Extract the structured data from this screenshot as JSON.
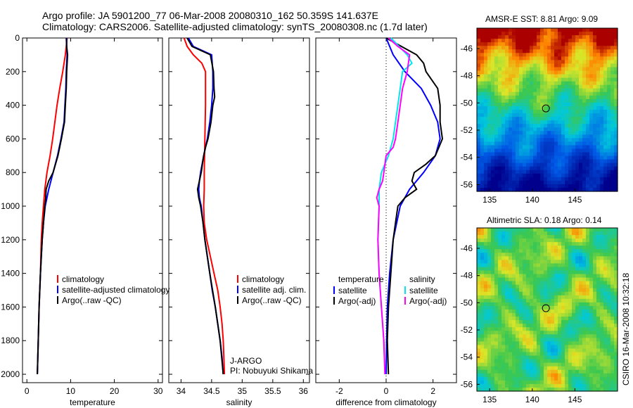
{
  "header": {
    "line1": "Argo profile: JA 5901200_77 06-Mar-2008 20080310_162 50.359S 141.637E",
    "line2": "Climatology: CARS2006. Satellite-adjusted climatology: synTS_20080308.nc (1.7d later)"
  },
  "chart_data": [
    {
      "type": "line",
      "xlabel": "temperature",
      "ylabel": "",
      "xlim": [
        -1,
        31
      ],
      "ylim": [
        2050,
        0
      ],
      "x_ticks": [
        "0",
        "10",
        "20",
        "30"
      ],
      "y_ticks": [
        "0",
        "200",
        "400",
        "600",
        "800",
        "1000",
        "1200",
        "1400",
        "1600",
        "1800",
        "2000"
      ],
      "legend": [
        "climatology",
        "satellite-adjusted climatology",
        "Argo(..raw -QC)"
      ],
      "series": [
        {
          "name": "climatology",
          "color": "#ff0000",
          "depth": [
            0,
            50,
            100,
            200,
            300,
            400,
            500,
            600,
            700,
            800,
            900,
            1000,
            1100,
            1200,
            1400,
            1600,
            1800,
            2000
          ],
          "values": [
            9.2,
            9.0,
            8.8,
            8.2,
            7.5,
            6.9,
            6.4,
            5.9,
            5.3,
            4.6,
            4.1,
            3.8,
            3.5,
            3.3,
            3.1,
            2.8,
            2.6,
            2.4
          ]
        },
        {
          "name": "satellite-adjusted climatology",
          "color": "#0000ff",
          "depth": [
            0,
            50,
            100,
            200,
            300,
            400,
            500,
            600,
            700,
            800,
            900,
            1000,
            1100,
            1200,
            1400,
            1600,
            1800,
            2000
          ],
          "values": [
            9.1,
            9.1,
            9.2,
            9.0,
            8.9,
            8.7,
            8.5,
            7.8,
            7.0,
            6.0,
            5.0,
            4.2,
            3.8,
            3.5,
            3.1,
            2.8,
            2.6,
            2.4
          ]
        },
        {
          "name": "Argo(..raw -QC)",
          "color": "#000000",
          "depth": [
            0,
            50,
            100,
            200,
            300,
            400,
            500,
            600,
            700,
            800,
            850,
            900,
            950,
            1000,
            1100,
            1200,
            1400,
            1600,
            1800,
            2000
          ],
          "values": [
            9.0,
            9.1,
            9.3,
            9.1,
            9.0,
            8.8,
            8.6,
            7.9,
            7.1,
            6.0,
            5.0,
            4.4,
            4.3,
            4.1,
            3.8,
            3.5,
            3.1,
            2.8,
            2.6,
            2.4
          ]
        }
      ]
    },
    {
      "type": "line",
      "xlabel": "salinity",
      "ylabel": "",
      "xlim": [
        33.8,
        36.1
      ],
      "ylim": [
        2050,
        0
      ],
      "x_ticks": [
        "34",
        "34.5",
        "35",
        "35.5",
        "36"
      ],
      "legend": [
        "climatology",
        "satellite adj. clim.",
        "Argo(..raw -QC)"
      ],
      "annotation": [
        "J-ARGO",
        "PI: Nobuyuki Shikama"
      ],
      "series": [
        {
          "name": "climatology",
          "color": "#ff0000",
          "depth": [
            0,
            50,
            100,
            150,
            200,
            300,
            400,
            600,
            800,
            900,
            1000,
            1100,
            1200,
            1300,
            1400,
            1500,
            1600,
            1700,
            1800,
            1900,
            2000
          ],
          "values": [
            34.05,
            34.1,
            34.2,
            34.34,
            34.4,
            34.4,
            34.4,
            34.39,
            34.38,
            34.38,
            34.37,
            34.38,
            34.42,
            34.48,
            34.54,
            34.6,
            34.64,
            34.67,
            34.69,
            34.7,
            34.71
          ]
        },
        {
          "name": "satellite adj. clim.",
          "color": "#0000ff",
          "depth": [
            0,
            50,
            100,
            200,
            300,
            400,
            500,
            600,
            700,
            800,
            850,
            900,
            950,
            1000,
            1100,
            1200,
            1300,
            1400,
            1500,
            1600,
            1700,
            1800,
            1900,
            2000
          ],
          "values": [
            34.12,
            34.2,
            34.5,
            34.52,
            34.52,
            34.5,
            34.47,
            34.43,
            34.37,
            34.32,
            34.3,
            34.29,
            34.3,
            34.33,
            34.36,
            34.39,
            34.43,
            34.47,
            34.51,
            34.56,
            34.6,
            34.64,
            34.67,
            34.69
          ]
        },
        {
          "name": "Argo(..raw -QC)",
          "color": "#000000",
          "depth": [
            0,
            50,
            100,
            200,
            300,
            350,
            400,
            500,
            600,
            650,
            700,
            750,
            800,
            850,
            900,
            950,
            1000,
            1100,
            1200,
            1400,
            1600,
            1800,
            2000
          ],
          "values": [
            34.1,
            34.18,
            34.48,
            34.53,
            34.54,
            34.55,
            34.52,
            34.49,
            34.44,
            34.4,
            34.37,
            34.35,
            34.33,
            34.3,
            34.27,
            34.29,
            34.32,
            34.36,
            34.39,
            34.47,
            34.56,
            34.64,
            34.69
          ]
        }
      ]
    },
    {
      "type": "line",
      "xlabel": "difference from climatology",
      "ylabel": "",
      "xlim": [
        -3.0,
        3.0
      ],
      "ylim": [
        2050,
        0
      ],
      "x_ticks": [
        "-2",
        "0",
        "2"
      ],
      "legend_left_title": "temperature",
      "legend_right_title": "salinity",
      "legend_left": [
        "satellite",
        "Argo(-adj)"
      ],
      "legend_right": [
        "satellite",
        "Argo(-adj)"
      ],
      "series": [
        {
          "name": "temperature satellite",
          "color": "#0000ff",
          "depth": [
            0,
            100,
            200,
            300,
            400,
            500,
            600,
            700,
            800,
            900,
            1000,
            1200,
            1400,
            1600,
            1800,
            2000
          ],
          "values": [
            0.0,
            0.3,
            0.8,
            1.5,
            1.9,
            2.2,
            2.3,
            2.1,
            1.6,
            1.0,
            0.6,
            0.3,
            0.15,
            0.05,
            0.02,
            0.0
          ]
        },
        {
          "name": "temperature Argo(-adj)",
          "color": "#000000",
          "depth": [
            0,
            100,
            150,
            200,
            300,
            400,
            500,
            600,
            700,
            750,
            800,
            850,
            900,
            950,
            1000,
            1100,
            1200,
            1400,
            1600,
            1800,
            2000
          ],
          "values": [
            0.0,
            1.3,
            1.6,
            1.7,
            2.2,
            2.3,
            2.3,
            2.4,
            2.1,
            1.7,
            1.2,
            1.1,
            1.3,
            0.8,
            0.5,
            0.4,
            0.3,
            0.2,
            0.1,
            0.05,
            0.1
          ]
        },
        {
          "name": "salinity satellite",
          "color": "#00e5ee",
          "depth": [
            0,
            100,
            150,
            200,
            300,
            400,
            500,
            600,
            700,
            800,
            900,
            1000,
            1200,
            1400,
            1600,
            1800,
            2000
          ],
          "values": [
            0.2,
            0.9,
            1.1,
            0.7,
            0.6,
            0.5,
            0.4,
            0.3,
            0.1,
            -0.2,
            -0.3,
            -0.3,
            -0.35,
            -0.3,
            -0.2,
            -0.1,
            -0.05
          ]
        },
        {
          "name": "salinity Argo(-adj)",
          "color": "#ff00ff",
          "depth": [
            0,
            50,
            100,
            200,
            300,
            400,
            500,
            600,
            650,
            700,
            800,
            850,
            900,
            950,
            1000,
            1200,
            1400,
            1600,
            1800,
            2000
          ],
          "values": [
            0.1,
            0.5,
            1.0,
            0.9,
            0.7,
            0.6,
            0.5,
            0.4,
            0.3,
            0.0,
            -0.1,
            -0.15,
            -0.3,
            -0.4,
            -0.3,
            -0.35,
            -0.3,
            -0.2,
            -0.1,
            -0.05
          ]
        }
      ]
    },
    {
      "type": "heatmap",
      "title": "AMSR-E SST: 8.81 Argo: 9.09",
      "xlim": [
        133.5,
        150
      ],
      "ylim": [
        -56.5,
        -44.5
      ],
      "x_ticks": [
        "135",
        "140",
        "145"
      ],
      "y_ticks": [
        "-46",
        "-48",
        "-50",
        "-52",
        "-54",
        "-56"
      ],
      "marker": {
        "lon": 141.6,
        "lat": -50.4
      }
    },
    {
      "type": "heatmap",
      "title": "Altimetric SLA: 0.18 Argo: 0.14",
      "xlim": [
        133.5,
        150
      ],
      "ylim": [
        -56.5,
        -44.5
      ],
      "x_ticks": [
        "135",
        "140",
        "145"
      ],
      "y_ticks": [
        "-46",
        "-48",
        "-50",
        "-52",
        "-54",
        "-56"
      ],
      "marker": {
        "lon": 141.6,
        "lat": -50.4
      }
    }
  ],
  "credit": "CSIRO 16-Mar-2008 10:32:18"
}
